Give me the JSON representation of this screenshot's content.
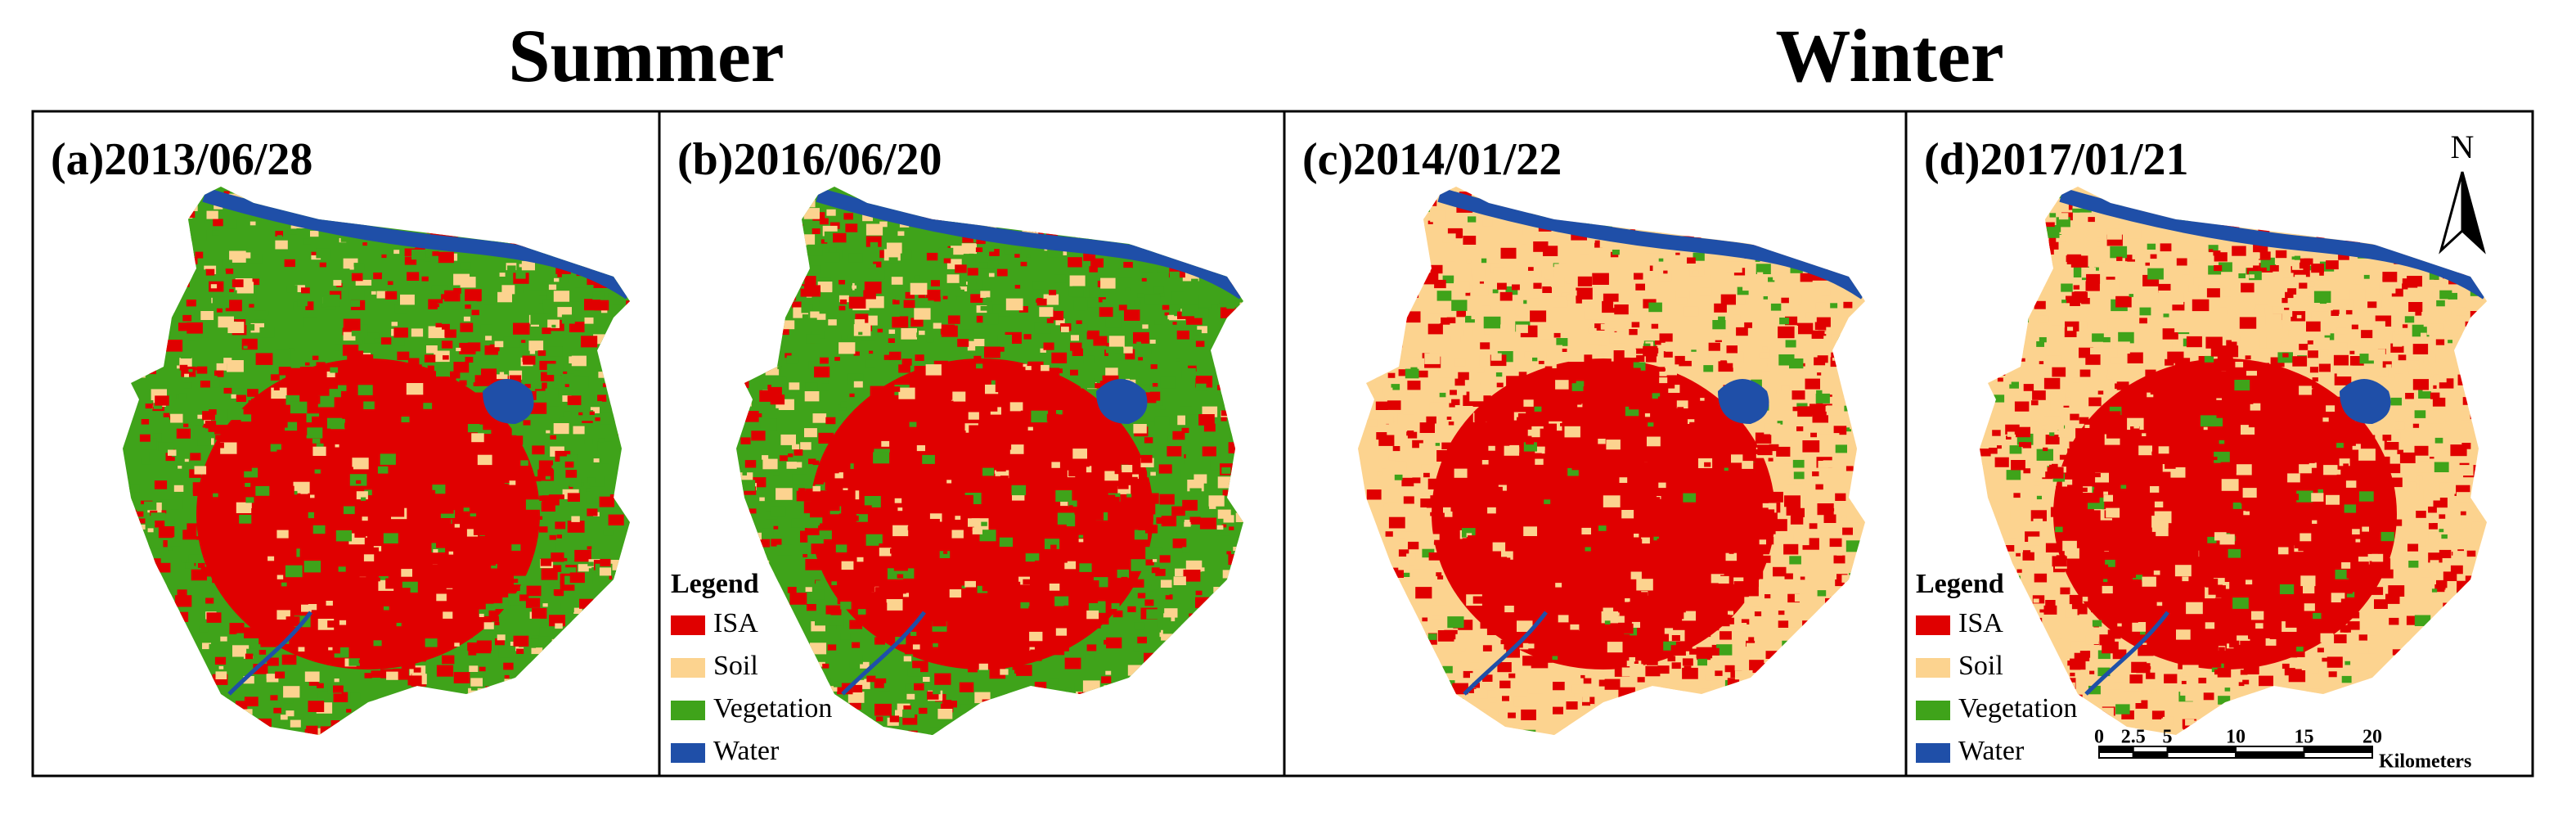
{
  "headings": [
    "Summer",
    "Winter"
  ],
  "panels": [
    {
      "label": "(a)2013/06/28",
      "season": "summer"
    },
    {
      "label": "(b)2016/06/20",
      "season": "summer"
    },
    {
      "label": "(c)2014/01/22",
      "season": "winter"
    },
    {
      "label": "(d)2017/01/21",
      "season": "winter"
    }
  ],
  "legend": {
    "title": "Legend",
    "items": [
      {
        "label": "ISA",
        "color": "#e00000"
      },
      {
        "label": "Soil",
        "color": "#fcd38f"
      },
      {
        "label": "Vegetation",
        "color": "#3fa31a"
      },
      {
        "label": "Water",
        "color": "#1f4fa8"
      }
    ]
  },
  "north_arrow": "N",
  "scale_bar": {
    "ticks": [
      0,
      2.5,
      5,
      10,
      15,
      20
    ],
    "unit": "Kilometers"
  }
}
